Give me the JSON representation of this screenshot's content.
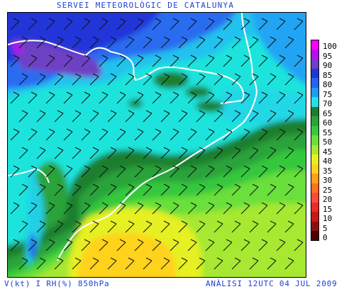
{
  "title": "SERVEI METEOROLÒGIC DE CATALUNYA",
  "footer": {
    "left": "V(kt) I RH(%) 850hPa",
    "right": "ANÀLISI 12UTC 04 JUL 2009"
  },
  "legend": [
    {
      "label": "100",
      "color": "#ff00ff"
    },
    {
      "label": "95",
      "color": "#b30ff0"
    },
    {
      "label": "90",
      "color": "#6e3fc4"
    },
    {
      "label": "85",
      "color": "#2136d9"
    },
    {
      "label": "80",
      "color": "#2464f2"
    },
    {
      "label": "75",
      "color": "#1e9cf5"
    },
    {
      "label": "70",
      "color": "#22e0e6"
    },
    {
      "label": "65",
      "color": "#1f7f2d"
    },
    {
      "label": "60",
      "color": "#2aa33a"
    },
    {
      "label": "55",
      "color": "#36c83e"
    },
    {
      "label": "50",
      "color": "#69e03a"
    },
    {
      "label": "45",
      "color": "#a6e830"
    },
    {
      "label": "40",
      "color": "#e6f020"
    },
    {
      "label": "35",
      "color": "#ffd21a"
    },
    {
      "label": "30",
      "color": "#ff9f1a"
    },
    {
      "label": "25",
      "color": "#ff7020"
    },
    {
      "label": "20",
      "color": "#ff4a3a"
    },
    {
      "label": "15",
      "color": "#f0282a"
    },
    {
      "label": "10",
      "color": "#c81818"
    },
    {
      "label": "5",
      "color": "#8c0f0f"
    },
    {
      "label": "0",
      "color": "#4a0000"
    }
  ]
}
